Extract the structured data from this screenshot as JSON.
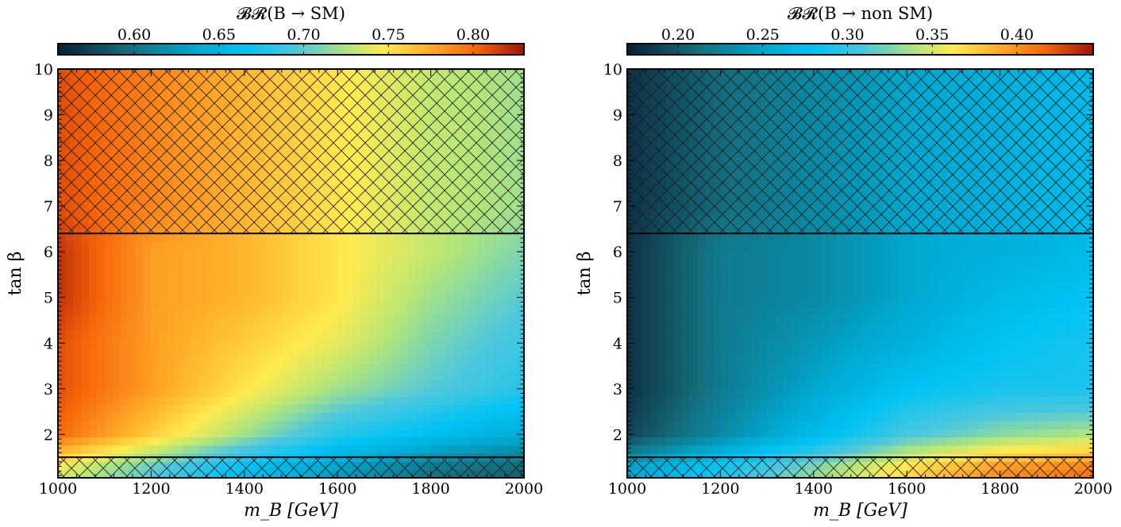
{
  "chart_data": [
    {
      "type": "heatmap",
      "colorbar": {
        "title": "𝓑𝓡(B → SM)",
        "ticks": [
          0.6,
          0.65,
          0.7,
          0.75,
          0.8
        ],
        "tick_labels": [
          "0.60",
          "0.65",
          "0.70",
          "0.75",
          "0.80"
        ],
        "range": [
          0.555,
          0.83
        ],
        "placement": "top"
      },
      "xlabel": "m_B [GeV]",
      "ylabel": "tan β",
      "xlim": [
        1000,
        2000
      ],
      "ylim": [
        1.05,
        10
      ],
      "xticks": [
        1000,
        1200,
        1400,
        1600,
        1800,
        2000
      ],
      "xtick_labels": [
        "1000",
        "1200",
        "1400",
        "1600",
        "1800",
        "2000"
      ],
      "yticks": [
        2,
        3,
        4,
        5,
        6,
        7,
        8,
        9,
        10
      ],
      "ytick_labels": [
        "2",
        "3",
        "4",
        "5",
        "6",
        "7",
        "8",
        "9",
        "10"
      ],
      "excluded_regions": [
        {
          "tanb_min": 6.4,
          "tanb_max": 10,
          "pattern": "crosshatch"
        },
        {
          "tanb_min": 1.05,
          "tanb_max": 1.5,
          "pattern": "crosshatch"
        }
      ],
      "sample_grid": {
        "x": [
          1000,
          1200,
          1400,
          1600,
          1800,
          2000
        ],
        "y": [
          1.25,
          2,
          3,
          4,
          5,
          6,
          7,
          8,
          9,
          10
        ],
        "z": [
          [
            0.74,
            0.7,
            0.66,
            0.63,
            0.6,
            0.59
          ],
          [
            0.8,
            0.76,
            0.72,
            0.68,
            0.66,
            0.64
          ],
          [
            0.81,
            0.78,
            0.75,
            0.72,
            0.7,
            0.68
          ],
          [
            0.81,
            0.78,
            0.76,
            0.74,
            0.71,
            0.69
          ],
          [
            0.82,
            0.78,
            0.77,
            0.75,
            0.72,
            0.7
          ],
          [
            0.82,
            0.78,
            0.77,
            0.75,
            0.73,
            0.71
          ],
          [
            0.81,
            0.79,
            0.77,
            0.75,
            0.73,
            0.72
          ],
          [
            0.81,
            0.79,
            0.77,
            0.75,
            0.73,
            0.72
          ],
          [
            0.81,
            0.79,
            0.77,
            0.75,
            0.73,
            0.72
          ],
          [
            0.81,
            0.79,
            0.77,
            0.75,
            0.73,
            0.72
          ]
        ]
      }
    },
    {
      "type": "heatmap",
      "colorbar": {
        "title": "𝓑𝓡(B → non SM)",
        "ticks": [
          0.2,
          0.25,
          0.3,
          0.35,
          0.4
        ],
        "tick_labels": [
          "0.20",
          "0.25",
          "0.30",
          "0.35",
          "0.40"
        ],
        "range": [
          0.17,
          0.445
        ],
        "placement": "top"
      },
      "xlabel": "m_B [GeV]",
      "ylabel": "tan β",
      "xlim": [
        1000,
        2000
      ],
      "ylim": [
        1.05,
        10
      ],
      "xticks": [
        1000,
        1200,
        1400,
        1600,
        1800,
        2000
      ],
      "xtick_labels": [
        "1000",
        "1200",
        "1400",
        "1600",
        "1800",
        "2000"
      ],
      "yticks": [
        2,
        3,
        4,
        5,
        6,
        7,
        8,
        9,
        10
      ],
      "ytick_labels": [
        "2",
        "3",
        "4",
        "5",
        "6",
        "7",
        "8",
        "9",
        "10"
      ],
      "excluded_regions": [
        {
          "tanb_min": 6.4,
          "tanb_max": 10,
          "pattern": "crosshatch"
        },
        {
          "tanb_min": 1.05,
          "tanb_max": 1.5,
          "pattern": "crosshatch"
        }
      ],
      "sample_grid": {
        "x": [
          1000,
          1200,
          1400,
          1600,
          1800,
          2000
        ],
        "y": [
          1.25,
          2,
          3,
          4,
          5,
          6,
          7,
          8,
          9,
          10
        ],
        "z": [
          [
            0.25,
            0.29,
            0.33,
            0.37,
            0.4,
            0.41
          ],
          [
            0.19,
            0.23,
            0.27,
            0.31,
            0.33,
            0.34
          ],
          [
            0.18,
            0.22,
            0.25,
            0.28,
            0.29,
            0.29
          ],
          [
            0.18,
            0.22,
            0.24,
            0.26,
            0.28,
            0.29
          ],
          [
            0.18,
            0.22,
            0.23,
            0.25,
            0.27,
            0.28
          ],
          [
            0.18,
            0.22,
            0.23,
            0.25,
            0.26,
            0.27
          ],
          [
            0.18,
            0.21,
            0.23,
            0.25,
            0.26,
            0.27
          ],
          [
            0.18,
            0.21,
            0.23,
            0.25,
            0.26,
            0.27
          ],
          [
            0.18,
            0.21,
            0.23,
            0.25,
            0.26,
            0.27
          ],
          [
            0.18,
            0.21,
            0.23,
            0.25,
            0.26,
            0.27
          ]
        ]
      }
    }
  ]
}
